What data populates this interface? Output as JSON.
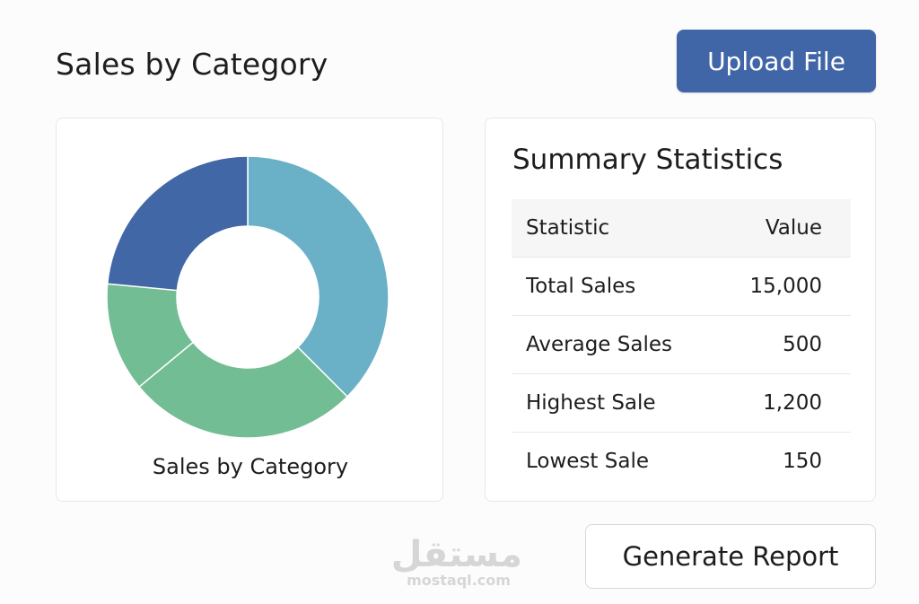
{
  "header": {
    "title": "Sales by Category",
    "upload_label": "Upload File"
  },
  "chart_data": {
    "type": "pie",
    "style": "donut",
    "title": "Sales by Category",
    "categories": [
      "",
      "",
      "",
      ""
    ],
    "values": [
      37.5,
      26.5,
      12.5,
      23.5
    ],
    "colors": [
      "#6ab1c8",
      "#72bd94",
      "#72bd94",
      "#4267a6"
    ],
    "legend": false
  },
  "stats": {
    "title": "Summary Statistics",
    "headers": [
      "Statistic",
      "Value"
    ],
    "rows": [
      {
        "label": "Total Sales",
        "value": "15,000"
      },
      {
        "label": "Average Sales",
        "value": "500"
      },
      {
        "label": "Highest Sale",
        "value": "1,200"
      },
      {
        "label": "Lowest Sale",
        "value": "150"
      }
    ]
  },
  "actions": {
    "generate_label": "Generate Report"
  },
  "watermark": {
    "arabic": "مستقل",
    "latin": "mostaql.com"
  },
  "colors": {
    "accent": "#4166a7",
    "card_border": "#e7e7e7",
    "table_header_bg": "#f6f6f6"
  }
}
